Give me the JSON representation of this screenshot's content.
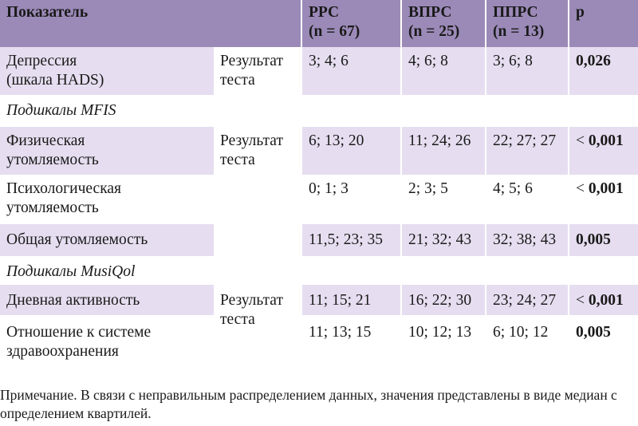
{
  "header": {
    "indicator": "Показатель",
    "rrs": "РРС",
    "rrs_n": "(n = 67)",
    "vprs": "ВПРС",
    "vprs_n": "(n = 25)",
    "pprs": "ППРС",
    "pprs_n": "(n = 13)",
    "p": "p"
  },
  "rows": {
    "depression": {
      "name_line1": "Депрессия",
      "name_line2": "(шкала HADS)",
      "method_line1": "Результат",
      "method_line2": "теста",
      "rrs": "3; 4; 6",
      "vprs": "4; 6; 8",
      "pprs": "3; 6; 8",
      "p": "0,026"
    },
    "mfis_section": "Подшкалы MFIS",
    "physical": {
      "name_line1": "Физическая",
      "name_line2": "утомляемость",
      "method_line1": "Результат",
      "method_line2": "теста",
      "rrs": "6; 13; 20",
      "vprs": "11; 24; 26",
      "pprs": "22; 27; 27",
      "p_prefix": "<",
      "p": "0,001"
    },
    "psychological": {
      "name_line1": "Психологическая",
      "name_line2": "утомляемость",
      "rrs": "0; 1; 3",
      "vprs": "2; 3; 5",
      "pprs": "4; 5; 6",
      "p_prefix": "<",
      "p": "0,001"
    },
    "general": {
      "name": "Общая утомляемость",
      "rrs": "11,5; 23; 35",
      "vprs": "21; 32; 43",
      "pprs": "32; 38; 43",
      "p": "0,005"
    },
    "musiqol_section": "Подшкалы MusiQol",
    "daily": {
      "name": "Дневная активность",
      "method_line1": "Результат",
      "method_line2": "теста",
      "rrs": "11; 15; 21",
      "vprs": "16; 22; 30",
      "pprs": "23; 24; 27",
      "p_prefix": "<",
      "p": "0,001"
    },
    "healthcare": {
      "name_line1": "Отношение к системе",
      "name_line2": "здравоохранения",
      "rrs": "11; 13; 15",
      "vprs": "10; 12; 13",
      "pprs": "6; 10; 12",
      "p": "0,005"
    }
  },
  "note": "Примечание. В связи с неправильным распределением данных, значения представлены в виде медиан с определением квартилей.",
  "colors": {
    "header_bg": "#9b8ab8",
    "band_bg": "#e6def0"
  }
}
